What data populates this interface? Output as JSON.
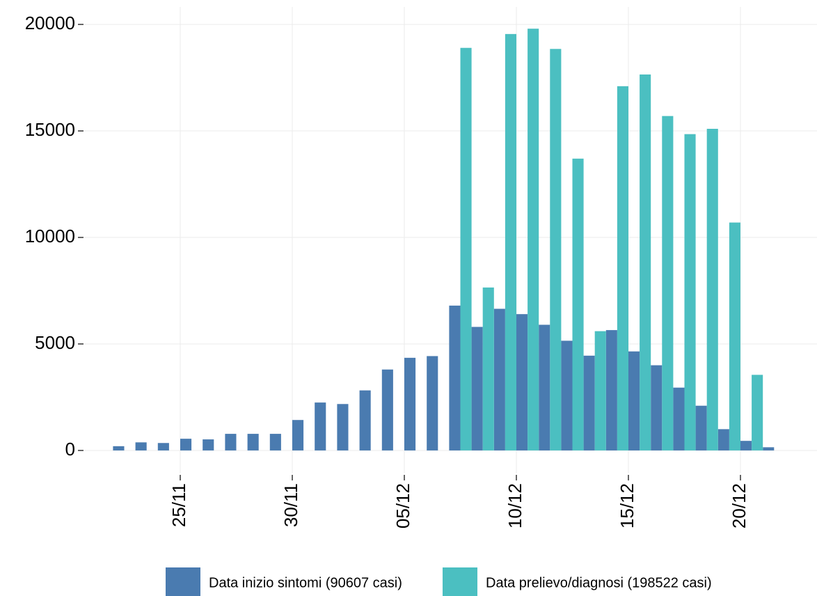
{
  "chart_data": {
    "type": "bar",
    "categories": [
      null,
      null,
      null,
      "25/11",
      null,
      null,
      null,
      null,
      "30/11",
      null,
      null,
      null,
      null,
      "05/12",
      null,
      null,
      null,
      null,
      "10/12",
      null,
      null,
      null,
      null,
      "15/12",
      null,
      null,
      null,
      null,
      "20/12",
      null
    ],
    "series": [
      {
        "name": "Data inizio sintomi (90607 casi)",
        "color": "#4a7bb0",
        "values": [
          200,
          380,
          350,
          550,
          520,
          780,
          780,
          780,
          1430,
          2250,
          2180,
          2820,
          3800,
          4350,
          4430,
          6800,
          5800,
          6650,
          6400,
          5900,
          5150,
          4450,
          5650,
          4650,
          4000,
          2950,
          2100,
          1000,
          450,
          150
        ]
      },
      {
        "name": "Data prelievo/diagnosi (198522 casi)",
        "color": "#4bbfc1",
        "values": [
          null,
          null,
          null,
          null,
          null,
          null,
          null,
          null,
          null,
          null,
          null,
          null,
          null,
          null,
          null,
          18900,
          7650,
          19550,
          19800,
          18850,
          13700,
          5600,
          17100,
          17650,
          15700,
          14850,
          15100,
          10700,
          3550,
          null
        ]
      }
    ],
    "ylim": [
      -1080,
      20820
    ],
    "yticks": [
      0,
      5000,
      10000,
      15000,
      20000
    ],
    "grid": true,
    "legend": "bottom"
  }
}
